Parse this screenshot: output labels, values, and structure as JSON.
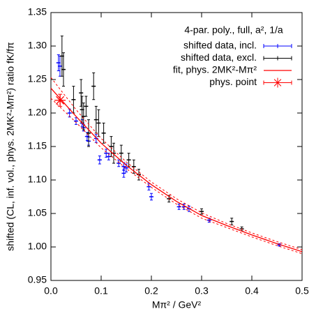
{
  "chart_data": {
    "type": "scatter",
    "title": "4-par. poly., full, a², 1/a",
    "x_label": "Mπ² / GeV²",
    "y_label": "shifted (CL, inf. vol., phys. 2MK²-Mπ²) ratio fK/fπ",
    "xlim": [
      0,
      0.5
    ],
    "ylim": [
      0.95,
      1.35
    ],
    "xticks": [
      {
        "value": 0,
        "label": "0.0"
      },
      0.1,
      0.2,
      0.3,
      0.4,
      0.5
    ],
    "yticks": [
      0.95,
      {
        "value": 1,
        "label": "1.00"
      },
      1.05,
      {
        "value": 1.1,
        "label": "1.10"
      },
      1.15,
      {
        "value": 1.2,
        "label": "1.20"
      },
      1.25,
      {
        "value": 1.3,
        "label": "1.30"
      },
      1.35
    ],
    "legend": "upper right",
    "series": [
      {
        "name": "shifted data, incl.",
        "color": "#0000ff",
        "style": "errorbars",
        "x": [
          0.015,
          0.018,
          0.037,
          0.05,
          0.062,
          0.065,
          0.072,
          0.075,
          0.09,
          0.097,
          0.11,
          0.115,
          0.135,
          0.145,
          0.145,
          0.15,
          0.195,
          0.2,
          0.255,
          0.265,
          0.275,
          0.315,
          0.455
        ],
        "values": [
          1.275,
          1.27,
          1.2,
          1.188,
          1.185,
          1.178,
          1.165,
          1.158,
          1.162,
          1.13,
          1.14,
          1.135,
          1.125,
          1.12,
          1.11,
          1.118,
          1.09,
          1.075,
          1.06,
          1.06,
          1.057,
          1.04,
          1.003
        ],
        "errors": [
          0.012,
          0.015,
          0.006,
          0.005,
          0.005,
          0.005,
          0.006,
          0.006,
          0.006,
          0.006,
          0.006,
          0.005,
          0.005,
          0.006,
          0.006,
          0.006,
          0.005,
          0.005,
          0.004,
          0.004,
          0.004,
          0.003,
          0.002
        ]
      },
      {
        "name": "shifted data, excl.",
        "color": "#000000",
        "style": "errorbars",
        "x": [
          0.022,
          0.025,
          0.045,
          0.06,
          0.062,
          0.065,
          0.07,
          0.075,
          0.085,
          0.09,
          0.095,
          0.105,
          0.12,
          0.125,
          0.14,
          0.155,
          0.165,
          0.175,
          0.235,
          0.3,
          0.36,
          0.38
        ],
        "values": [
          1.285,
          1.265,
          1.22,
          1.23,
          1.205,
          1.195,
          1.21,
          1.17,
          1.24,
          1.19,
          1.185,
          1.17,
          1.15,
          1.14,
          1.14,
          1.13,
          1.12,
          1.108,
          1.072,
          1.053,
          1.038,
          1.027
        ],
        "errors": [
          0.03,
          0.025,
          0.02,
          0.02,
          0.02,
          0.02,
          0.015,
          0.02,
          0.02,
          0.02,
          0.02,
          0.015,
          0.015,
          0.015,
          0.012,
          0.01,
          0.01,
          0.008,
          0.005,
          0.004,
          0.005,
          0.003
        ]
      },
      {
        "name": "fit, phys. 2MK²-Mπ²",
        "color": "#ff0000",
        "style": "line",
        "x": [
          0,
          0.05,
          0.1,
          0.15,
          0.2,
          0.25,
          0.3,
          0.35,
          0.4,
          0.45,
          0.5
        ],
        "values": [
          1.237,
          1.195,
          1.155,
          1.122,
          1.093,
          1.068,
          1.047,
          1.032,
          1.018,
          1.005,
          0.993
        ],
        "upper": [
          1.253,
          1.205,
          1.162,
          1.127,
          1.097,
          1.072,
          1.051,
          1.035,
          1.021,
          1.008,
          0.996
        ],
        "lower": [
          1.222,
          1.186,
          1.148,
          1.117,
          1.089,
          1.064,
          1.043,
          1.029,
          1.015,
          1.002,
          0.99
        ]
      },
      {
        "name": "phys. point",
        "color": "#ff0000",
        "style": "star",
        "x": [
          0.0182
        ],
        "values": [
          1.219
        ],
        "errors": [
          0.009
        ]
      }
    ]
  }
}
